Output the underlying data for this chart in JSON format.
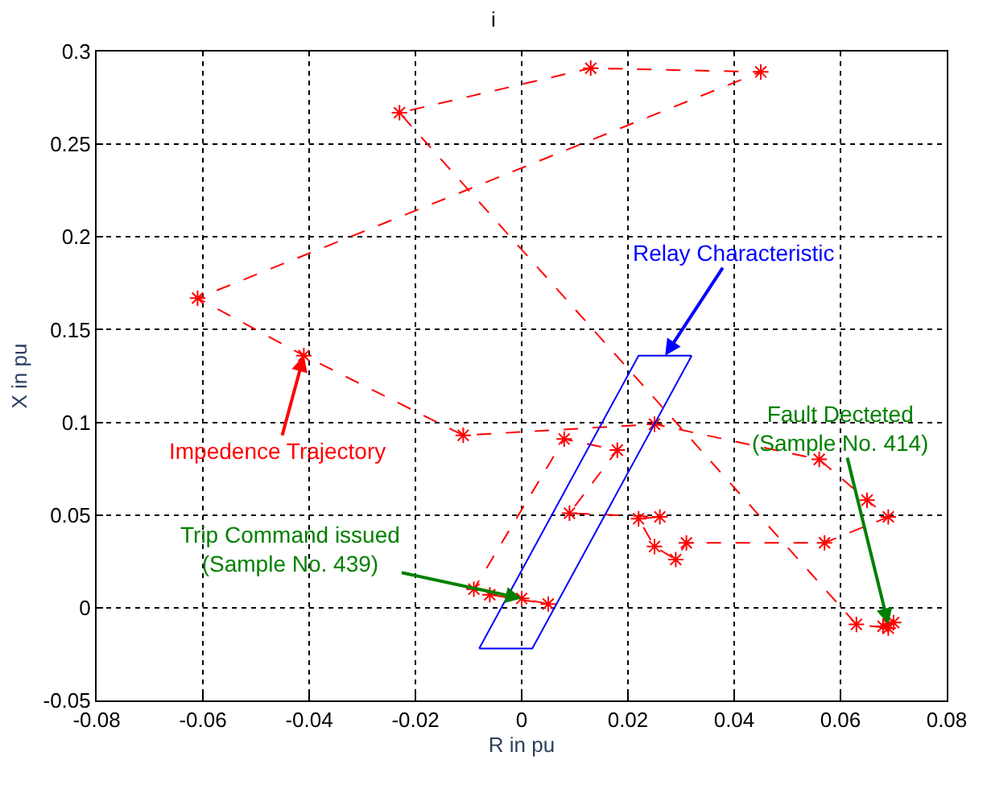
{
  "chart_data": {
    "type": "line",
    "title": "i",
    "xlabel": "R in pu",
    "ylabel": "X in pu",
    "xlim": [
      -0.08,
      0.08
    ],
    "xticks": [
      -0.08,
      -0.06,
      -0.04,
      -0.02,
      0,
      0.02,
      0.04,
      0.06,
      0.08
    ],
    "ylim": [
      -0.05,
      0.3
    ],
    "yticks": [
      -0.05,
      0,
      0.05,
      0.1,
      0.15,
      0.2,
      0.25,
      0.3
    ],
    "grid": true,
    "series": [
      {
        "color": "#ff0000",
        "marker": "cross",
        "line_style": "dashed",
        "x": [
          0.069,
          0.068,
          0.07,
          0.069,
          0.063,
          -0.023,
          0.013,
          0.045,
          -0.061,
          -0.041,
          -0.011,
          0.025,
          0.056,
          0.065,
          0.069,
          0.057,
          0.031,
          0.029,
          0.025,
          0.022,
          0.026,
          0.009,
          0.018,
          0.008,
          -0.009,
          -0.006,
          0.005,
          0.0
        ],
        "values": [
          -0.009,
          -0.01,
          -0.008,
          -0.011,
          -0.009,
          0.267,
          0.291,
          0.289,
          0.167,
          0.136,
          0.093,
          0.099,
          0.08,
          0.058,
          0.049,
          0.035,
          0.035,
          0.026,
          0.033,
          0.048,
          0.049,
          0.051,
          0.085,
          0.091,
          0.01,
          0.007,
          0.002,
          0.005
        ]
      },
      {
        "color": "#0000ff",
        "marker": "none",
        "line_style": "solid",
        "x": [
          -0.008,
          0.022,
          0.032
        ],
        "values": [
          -0.022,
          0.136,
          0.136
        ]
      },
      {
        "color": "#0000ff",
        "marker": "none",
        "line_style": "solid",
        "x": [
          -0.008,
          0.002,
          0.032
        ],
        "values": [
          -0.022,
          -0.022,
          0.136
        ]
      }
    ],
    "annotations": [
      {
        "text": "Impedence Trajectory",
        "x": -0.041,
        "y": 0.136
      },
      {
        "text": "Relay Characteristic",
        "x": 0.027,
        "y": 0.136
      },
      {
        "text": "Trip Command issued\n(Sample No. 439)",
        "x": 0.0,
        "y": 0.005
      },
      {
        "text": "Fault Decteted\n(Sample No. 414)",
        "x": 0.069,
        "y": -0.009
      }
    ]
  }
}
